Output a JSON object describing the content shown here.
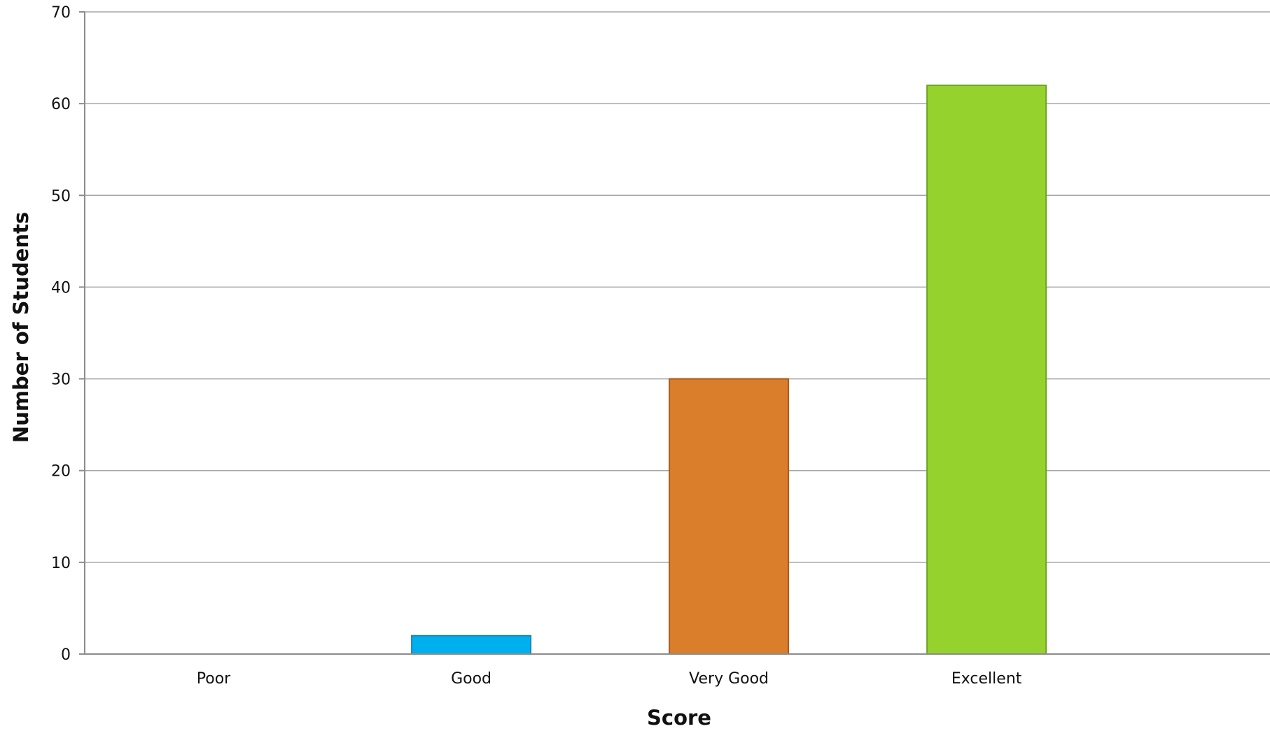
{
  "chart_data": {
    "type": "bar",
    "title": "",
    "xlabel": "Score",
    "ylabel": "Number of Students",
    "categories": [
      "Poor",
      "Good",
      "Very Good",
      "Excellent"
    ],
    "values": [
      0,
      2,
      30,
      62
    ],
    "colors": [
      "#00b0ee",
      "#00b0ee",
      "#da7e2b",
      "#96d22e"
    ],
    "border_colors": [
      "#1c86b8",
      "#1c86b8",
      "#a85b1d",
      "#6fa322"
    ],
    "ylim": [
      0,
      70
    ],
    "yticks": [
      0,
      10,
      20,
      30,
      40,
      50,
      60,
      70
    ],
    "grid": true,
    "legend": "none"
  }
}
